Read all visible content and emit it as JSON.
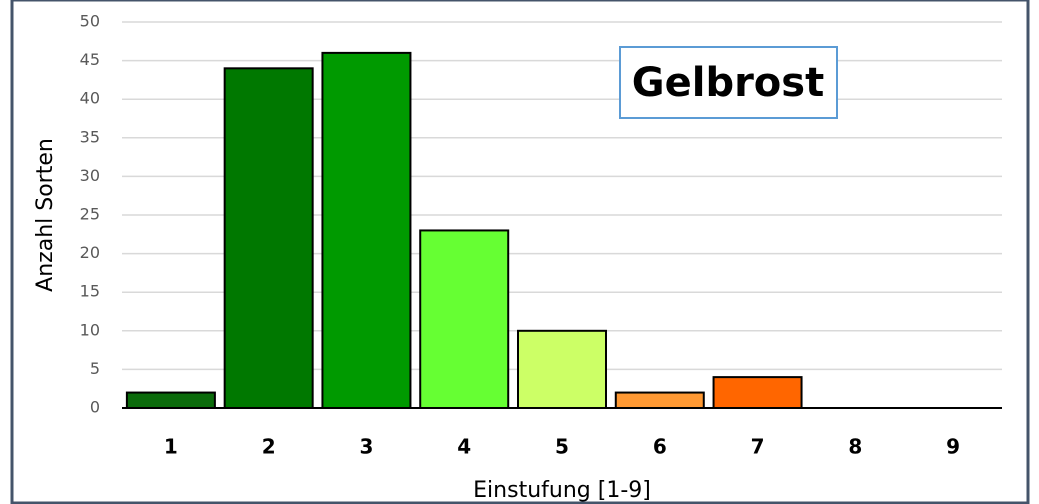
{
  "chart_data": {
    "type": "bar",
    "categories": [
      "1",
      "2",
      "3",
      "4",
      "5",
      "6",
      "7",
      "8",
      "9"
    ],
    "values": [
      2,
      44,
      46,
      23,
      10,
      2,
      4,
      0,
      0
    ],
    "colors": [
      "#0b6b0b",
      "#007800",
      "#009a00",
      "#66ff33",
      "#ccff66",
      "#ff9933",
      "#ff6600",
      "#ff6600",
      "#ff6600"
    ],
    "ylim": [
      0,
      50
    ],
    "yticks": [
      0,
      5,
      10,
      15,
      20,
      25,
      30,
      35,
      40,
      45,
      50
    ],
    "grid": true,
    "xlabel": "Einstufung [1-9]",
    "ylabel": "Anzahl Sorten",
    "annotation": "Gelbrost"
  }
}
